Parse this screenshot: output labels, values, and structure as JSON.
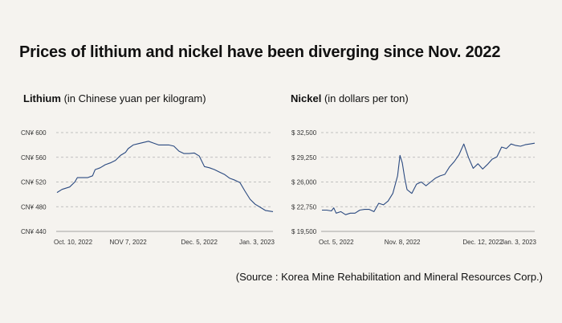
{
  "title": "Prices of lithium and nickel have been diverging since Nov. 2022",
  "source": "(Source : Korea Mine Rehabilitation and Mineral Resources Corp.)",
  "colors": {
    "line": "#2b4a80",
    "grid": "#b0b0b0",
    "background": "#f5f3ef"
  },
  "chart_data": [
    {
      "type": "line",
      "title": "Lithium",
      "subtitle": "(in Chinese yuan per kilogram)",
      "ylim": [
        440,
        600
      ],
      "yticks": [
        440,
        480,
        520,
        560,
        600
      ],
      "ytick_labels": [
        "CN¥ 440",
        "CN¥ 480",
        "CN¥ 520",
        "CN¥ 560",
        "CN¥ 600"
      ],
      "xlim": [
        0,
        85
      ],
      "xticks": [
        0,
        28,
        56,
        85
      ],
      "xtick_labels": [
        "Oct. 10, 2022",
        "NOV 7, 2022",
        "Dec. 5, 2022",
        "Jan. 3, 2023"
      ],
      "x": [
        0,
        2,
        5,
        7,
        8,
        10,
        12,
        14,
        15,
        17,
        19,
        21,
        23,
        25,
        27,
        28,
        30,
        32,
        34,
        36,
        38,
        40,
        42,
        44,
        46,
        48,
        50,
        52,
        54,
        56,
        58,
        60,
        62,
        64,
        66,
        68,
        70,
        72,
        74,
        76,
        78,
        80,
        82,
        85
      ],
      "values": [
        503,
        508,
        512,
        520,
        527,
        527,
        527,
        530,
        540,
        543,
        548,
        551,
        555,
        563,
        568,
        574,
        580,
        582,
        584,
        586,
        583,
        580,
        580,
        580,
        578,
        570,
        566,
        566,
        567,
        562,
        545,
        543,
        540,
        536,
        532,
        526,
        523,
        519,
        505,
        492,
        484,
        479,
        474,
        472
      ]
    },
    {
      "type": "line",
      "title": "Nickel",
      "subtitle": "(in dollars per ton)",
      "ylim": [
        19500,
        32500
      ],
      "yticks": [
        19500,
        22750,
        26000,
        29250,
        32500
      ],
      "ytick_labels": [
        "$ 19,500",
        "$ 22,750",
        "$ 26,000",
        "$ 29,250",
        "$ 32,500"
      ],
      "xlim": [
        0,
        90
      ],
      "xticks": [
        0,
        34,
        68,
        90
      ],
      "xtick_labels": [
        "Oct. 5, 2022",
        "Nov. 8, 2022",
        "Dec. 12, 2022",
        "Jan. 3, 2023"
      ],
      "x": [
        0,
        2,
        4,
        5,
        6,
        8,
        10,
        12,
        14,
        16,
        18,
        20,
        22,
        24,
        26,
        28,
        30,
        32,
        33,
        34,
        35,
        36,
        38,
        40,
        42,
        44,
        46,
        48,
        50,
        52,
        54,
        56,
        58,
        60,
        62,
        64,
        66,
        68,
        70,
        72,
        74,
        76,
        78,
        80,
        82,
        84,
        86,
        88,
        90
      ],
      "values": [
        22300,
        22300,
        22200,
        22600,
        21900,
        22100,
        21700,
        21900,
        21900,
        22300,
        22400,
        22400,
        22100,
        23200,
        23000,
        23500,
        24500,
        26800,
        29500,
        28500,
        26500,
        25000,
        24500,
        25700,
        26000,
        25500,
        26000,
        26500,
        26800,
        27000,
        28000,
        28700,
        29600,
        31000,
        29200,
        27800,
        28400,
        27700,
        28300,
        29000,
        29300,
        30600,
        30400,
        31000,
        30800,
        30700,
        30900,
        31000,
        31100
      ]
    }
  ]
}
